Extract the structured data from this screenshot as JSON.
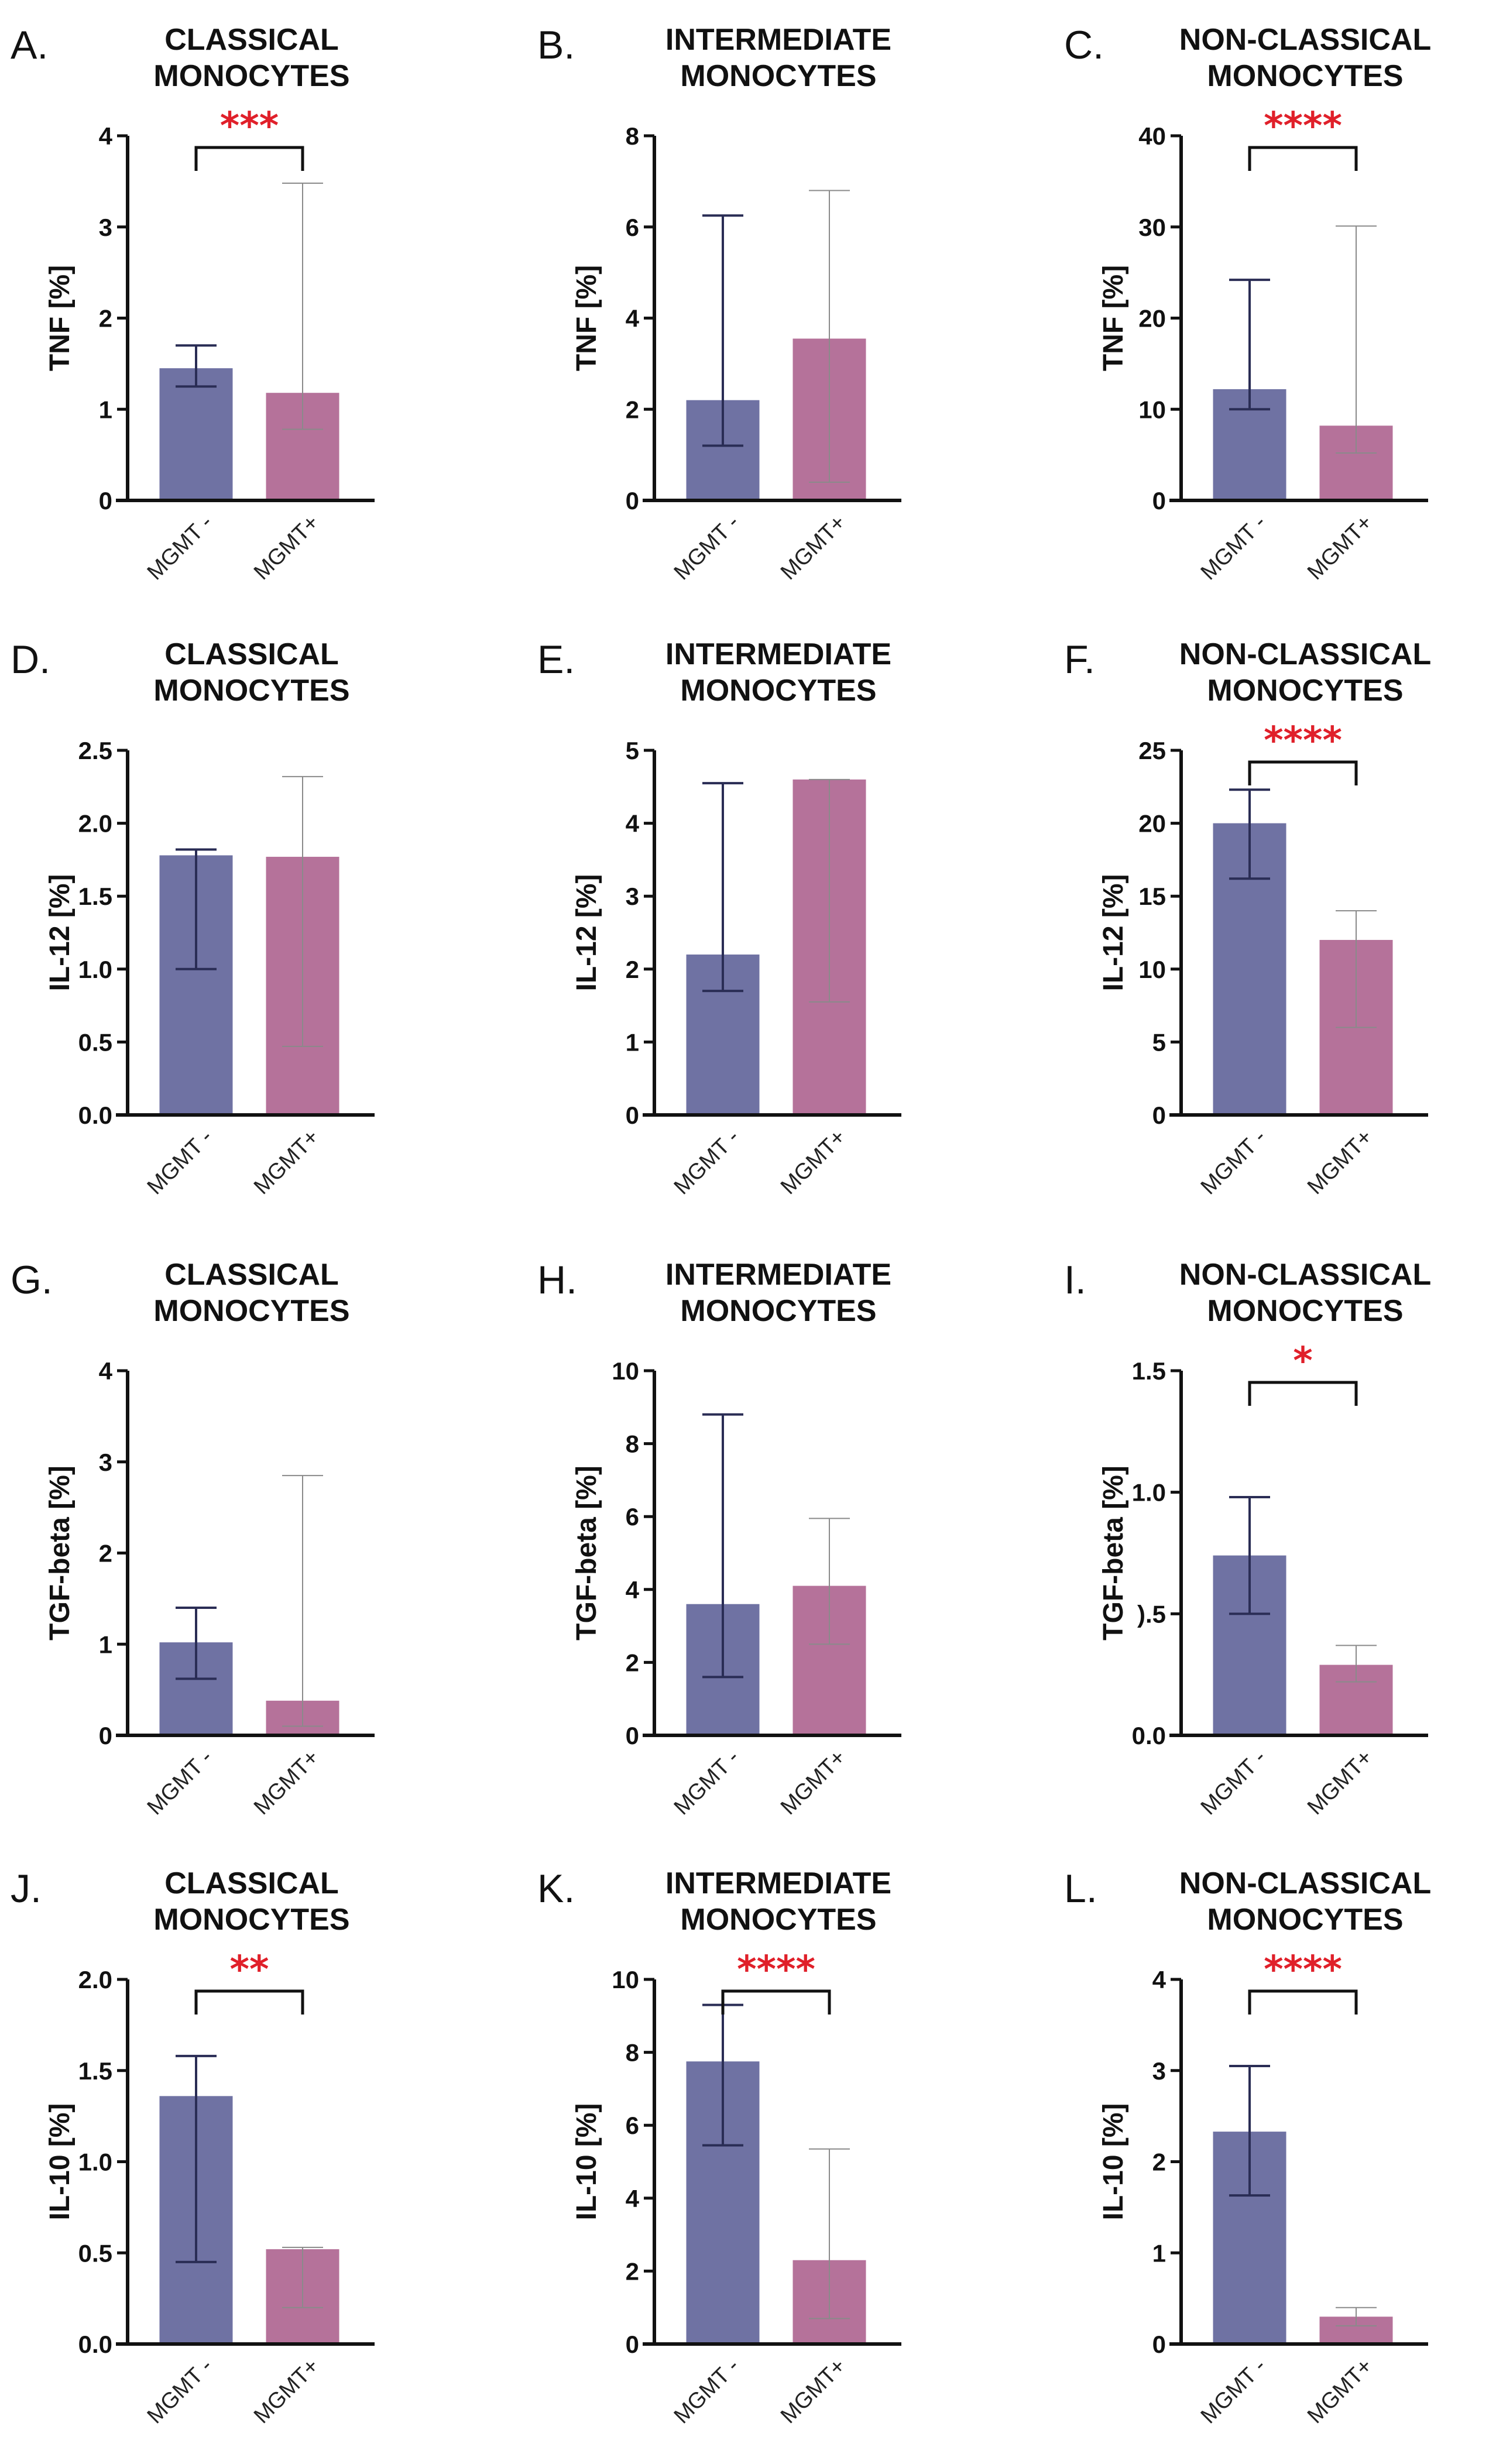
{
  "colors": {
    "mgmt_neg": "#6f72a3",
    "mgmt_pos": "#b5729a",
    "significance": "#e0202a",
    "axis": "#111111"
  },
  "chart_data": [
    {
      "type": "bar",
      "panel": "A.",
      "title": [
        "CLASSICAL",
        "MONOCYTES"
      ],
      "ylabel": "TNF [%]",
      "ylim": [
        0,
        4
      ],
      "yticks": [
        "0",
        "1",
        "2",
        "3",
        "4"
      ],
      "categories": [
        "MGMT -",
        "MGMT+"
      ],
      "values": [
        1.45,
        1.18
      ],
      "error_low": [
        1.25,
        0.78
      ],
      "error_high": [
        1.7,
        3.48
      ],
      "significance": "***"
    },
    {
      "type": "bar",
      "panel": "B.",
      "title": [
        "INTERMEDIATE",
        "MONOCYTES"
      ],
      "ylabel": "TNF [%]",
      "ylim": [
        0,
        8
      ],
      "yticks": [
        "0",
        "2",
        "4",
        "6",
        "8"
      ],
      "categories": [
        "MGMT -",
        "MGMT+"
      ],
      "values": [
        2.2,
        3.55
      ],
      "error_low": [
        1.2,
        0.4
      ],
      "error_high": [
        6.25,
        6.8
      ],
      "significance": ""
    },
    {
      "type": "bar",
      "panel": "C.",
      "title": [
        "NON-CLASSICAL",
        "MONOCYTES"
      ],
      "ylabel": "TNF [%]",
      "ylim": [
        0,
        40
      ],
      "yticks": [
        "0",
        "10",
        "20",
        "30",
        "40"
      ],
      "categories": [
        "MGMT -",
        "MGMT+"
      ],
      "values": [
        12.2,
        8.2
      ],
      "error_low": [
        10.0,
        5.2
      ],
      "error_high": [
        24.2,
        30.1
      ],
      "significance": "****"
    },
    {
      "type": "bar",
      "panel": "D.",
      "title": [
        "CLASSICAL",
        "MONOCYTES"
      ],
      "ylabel": "IL-12 [%]",
      "ylim": [
        0,
        2.5
      ],
      "yticks": [
        "0.0",
        "0.5",
        "1.0",
        "1.5",
        "2.0",
        "2.5"
      ],
      "categories": [
        "MGMT -",
        "MGMT+"
      ],
      "values": [
        1.78,
        1.77
      ],
      "error_low": [
        1.0,
        0.47
      ],
      "error_high": [
        1.82,
        2.32
      ],
      "significance": ""
    },
    {
      "type": "bar",
      "panel": "E.",
      "title": [
        "INTERMEDIATE",
        "MONOCYTES"
      ],
      "ylabel": "IL-12 [%]",
      "ylim": [
        0,
        5
      ],
      "yticks": [
        "0",
        "1",
        "2",
        "3",
        "4",
        "5"
      ],
      "categories": [
        "MGMT -",
        "MGMT+"
      ],
      "values": [
        2.2,
        4.6
      ],
      "error_low": [
        1.7,
        1.55
      ],
      "error_high": [
        4.55,
        4.6
      ],
      "significance": ""
    },
    {
      "type": "bar",
      "panel": "F.",
      "title": [
        "NON-CLASSICAL",
        "MONOCYTES"
      ],
      "ylabel": "IL-12 [%]",
      "ylim": [
        0,
        25
      ],
      "yticks": [
        "0",
        "5",
        "10",
        "15",
        "20",
        "25"
      ],
      "categories": [
        "MGMT -",
        "MGMT+"
      ],
      "values": [
        20.0,
        12.0
      ],
      "error_low": [
        16.2,
        6.0
      ],
      "error_high": [
        22.3,
        14.0
      ],
      "significance": "****"
    },
    {
      "type": "bar",
      "panel": "G.",
      "title": [
        "CLASSICAL",
        "MONOCYTES"
      ],
      "ylabel": "TGF-beta [%]",
      "ylim": [
        0,
        4
      ],
      "yticks": [
        "0",
        "1",
        "2",
        "3",
        "4"
      ],
      "categories": [
        "MGMT -",
        "MGMT+"
      ],
      "values": [
        1.02,
        0.38
      ],
      "error_low": [
        0.62,
        0.1
      ],
      "error_high": [
        1.4,
        2.85
      ],
      "significance": ""
    },
    {
      "type": "bar",
      "panel": "H.",
      "title": [
        "INTERMEDIATE",
        "MONOCYTES"
      ],
      "ylabel": "TGF-beta [%]",
      "ylim": [
        0,
        10
      ],
      "yticks": [
        "0",
        "2",
        "4",
        "6",
        "8",
        "10"
      ],
      "categories": [
        "MGMT -",
        "MGMT+"
      ],
      "values": [
        3.6,
        4.1
      ],
      "error_low": [
        1.6,
        2.5
      ],
      "error_high": [
        8.8,
        5.95
      ],
      "significance": ""
    },
    {
      "type": "bar",
      "panel": "I.",
      "title": [
        "NON-CLASSICAL",
        "MONOCYTES"
      ],
      "ylabel": "TGF-beta [%]",
      "ylim": [
        0,
        1.5
      ],
      "yticks": [
        "0.0",
        ").5",
        "1.0",
        "1.5"
      ],
      "categories": [
        "MGMT -",
        "MGMT+"
      ],
      "values": [
        0.74,
        0.29
      ],
      "error_low": [
        0.5,
        0.22
      ],
      "error_high": [
        0.98,
        0.37
      ],
      "significance": "*"
    },
    {
      "type": "bar",
      "panel": "J.",
      "title": [
        "CLASSICAL",
        "MONOCYTES"
      ],
      "ylabel": "IL-10 [%]",
      "ylim": [
        0,
        2.0
      ],
      "yticks": [
        "0.0",
        "0.5",
        "1.0",
        "1.5",
        "2.0"
      ],
      "categories": [
        "MGMT -",
        "MGMT+"
      ],
      "values": [
        1.36,
        0.52
      ],
      "error_low": [
        0.45,
        0.2
      ],
      "error_high": [
        1.58,
        0.53
      ],
      "significance": "**"
    },
    {
      "type": "bar",
      "panel": "K.",
      "title": [
        "INTERMEDIATE",
        "MONOCYTES"
      ],
      "ylabel": "IL-10 [%]",
      "ylim": [
        0,
        10
      ],
      "yticks": [
        "0",
        "2",
        "4",
        "6",
        "8",
        "10"
      ],
      "categories": [
        "MGMT -",
        "MGMT+"
      ],
      "values": [
        7.75,
        2.3
      ],
      "error_low": [
        5.45,
        0.7
      ],
      "error_high": [
        9.3,
        5.35
      ],
      "significance": "****"
    },
    {
      "type": "bar",
      "panel": "L.",
      "title": [
        "NON-CLASSICAL",
        "MONOCYTES"
      ],
      "ylabel": "IL-10 [%]",
      "ylim": [
        0,
        4
      ],
      "yticks": [
        "0",
        "1",
        "2",
        "3",
        "4"
      ],
      "categories": [
        "MGMT -",
        "MGMT+"
      ],
      "values": [
        2.33,
        0.3
      ],
      "error_low": [
        1.63,
        0.2
      ],
      "error_high": [
        3.05,
        0.4
      ],
      "significance": "****"
    }
  ]
}
